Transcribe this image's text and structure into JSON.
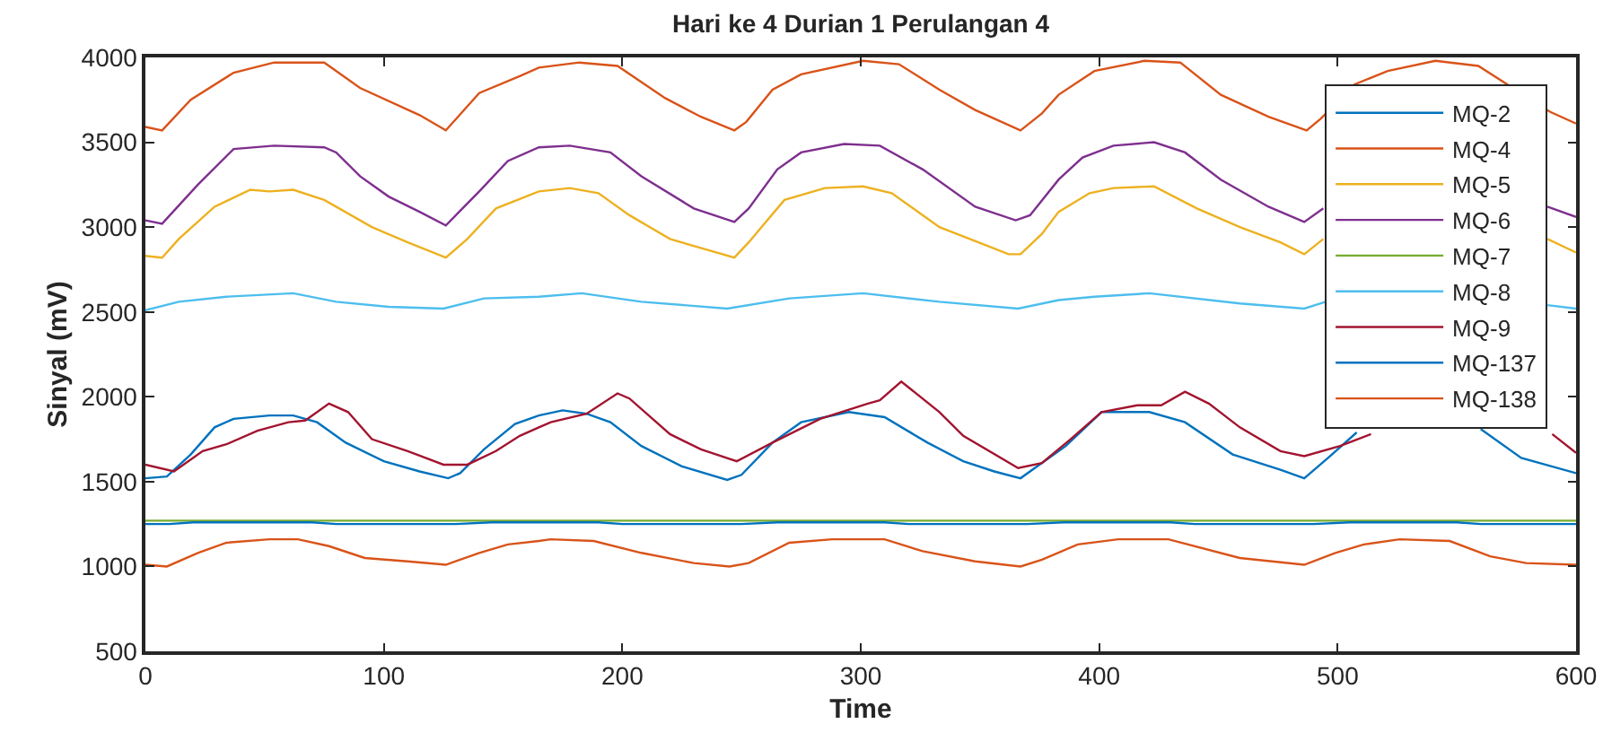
{
  "chart_data": {
    "type": "line",
    "title": "Hari ke 4 Durian 1 Perulangan 4",
    "xlabel": "Time",
    "ylabel": "Sinyal (mV)",
    "xlim": [
      0,
      600
    ],
    "ylim": [
      500,
      4000
    ],
    "xticks": [
      0,
      100,
      200,
      300,
      400,
      500,
      600
    ],
    "yticks": [
      500,
      1000,
      1500,
      2000,
      2500,
      3000,
      3500,
      4000
    ],
    "legend": "top right",
    "marker": "none",
    "line_style": "solid",
    "series": [
      {
        "name": "MQ-2",
        "color": "#0072bd",
        "x": [
          0,
          9,
          19,
          29,
          37,
          52,
          62,
          72,
          84,
          100,
          115,
          127,
          132,
          142,
          155,
          165,
          175,
          185,
          195,
          208,
          225,
          244,
          250,
          263,
          275,
          295,
          310,
          328,
          343,
          356,
          367,
          376,
          386,
          401,
          421,
          436,
          456,
          476,
          486,
          496,
          508,
          535,
          560,
          577,
          600
        ],
        "values": [
          1520,
          1530,
          1660,
          1820,
          1870,
          1890,
          1890,
          1850,
          1730,
          1620,
          1560,
          1520,
          1550,
          1690,
          1840,
          1890,
          1920,
          1900,
          1850,
          1710,
          1590,
          1510,
          1540,
          1730,
          1850,
          1910,
          1880,
          1730,
          1620,
          1560,
          1520,
          1610,
          1710,
          1910,
          1910,
          1850,
          1660,
          1570,
          1520,
          1640,
          1790,
          null,
          1810,
          1640,
          1550
        ]
      },
      {
        "name": "MQ-4",
        "color": "#d95319",
        "x": [
          0,
          7,
          19,
          37,
          54,
          75,
          90,
          115,
          126,
          140,
          157,
          165,
          182,
          198,
          218,
          233,
          247,
          252,
          263,
          275,
          301,
          316,
          333,
          348,
          367,
          376,
          383,
          398,
          419,
          434,
          451,
          471,
          487,
          493,
          507,
          521,
          541,
          559,
          589,
          600
        ],
        "values": [
          3590,
          3570,
          3750,
          3910,
          3970,
          3970,
          3820,
          3660,
          3570,
          3790,
          3890,
          3940,
          3970,
          3950,
          3760,
          3650,
          3570,
          3620,
          3810,
          3900,
          3980,
          3960,
          3810,
          3690,
          3570,
          3670,
          3780,
          3920,
          3980,
          3970,
          3780,
          3650,
          3570,
          3640,
          3840,
          3920,
          3980,
          3950,
          3680,
          3610
        ]
      },
      {
        "name": "MQ-5",
        "color": "#edb120",
        "x": [
          0,
          7,
          14,
          29,
          44,
          52,
          62,
          75,
          95,
          110,
          126,
          135,
          147,
          165,
          178,
          190,
          203,
          220,
          247,
          253,
          268,
          285,
          301,
          313,
          333,
          353,
          362,
          367,
          376,
          383,
          396,
          406,
          423,
          441,
          459,
          476,
          486,
          494,
          540,
          588,
          600
        ],
        "values": [
          2830,
          2820,
          2930,
          3120,
          3220,
          3210,
          3220,
          3160,
          3000,
          2910,
          2820,
          2930,
          3110,
          3210,
          3230,
          3200,
          3070,
          2930,
          2820,
          2910,
          3160,
          3230,
          3240,
          3200,
          3000,
          2890,
          2840,
          2840,
          2960,
          3090,
          3200,
          3230,
          3240,
          3110,
          3000,
          2910,
          2840,
          2930,
          null,
          2930,
          2850
        ]
      },
      {
        "name": "MQ-6",
        "color": "#7e2f8e",
        "x": [
          0,
          7,
          22,
          37,
          54,
          75,
          80,
          90,
          102,
          115,
          126,
          140,
          152,
          165,
          178,
          195,
          208,
          230,
          247,
          253,
          265,
          275,
          293,
          308,
          326,
          348,
          365,
          371,
          383,
          393,
          406,
          423,
          436,
          451,
          471,
          486,
          494,
          540,
          588,
          600
        ],
        "values": [
          3040,
          3020,
          3250,
          3460,
          3480,
          3470,
          3440,
          3300,
          3180,
          3090,
          3010,
          3210,
          3390,
          3470,
          3480,
          3440,
          3300,
          3110,
          3030,
          3110,
          3340,
          3440,
          3490,
          3480,
          3340,
          3120,
          3040,
          3070,
          3280,
          3410,
          3480,
          3500,
          3440,
          3280,
          3120,
          3030,
          3110,
          null,
          3120,
          3060
        ]
      },
      {
        "name": "MQ-7",
        "color": "#77ac30",
        "x": [
          0,
          100,
          200,
          300,
          400,
          500,
          600
        ],
        "values": [
          1270,
          1270,
          1270,
          1270,
          1270,
          1270,
          1270
        ]
      },
      {
        "name": "MQ-8",
        "color": "#4dbeee",
        "x": [
          0,
          14,
          34,
          62,
          80,
          102,
          125,
          142,
          165,
          183,
          208,
          244,
          270,
          301,
          333,
          366,
          383,
          398,
          421,
          459,
          486,
          495,
          540,
          588,
          600
        ],
        "values": [
          2510,
          2560,
          2590,
          2610,
          2560,
          2530,
          2520,
          2580,
          2590,
          2610,
          2560,
          2520,
          2580,
          2610,
          2560,
          2520,
          2570,
          2590,
          2610,
          2550,
          2520,
          2560,
          null,
          2540,
          2520
        ]
      },
      {
        "name": "MQ-9",
        "color": "#a2142f",
        "x": [
          0,
          12,
          24,
          34,
          47,
          60,
          67,
          77,
          85,
          95,
          110,
          125,
          135,
          147,
          157,
          165,
          170,
          185,
          198,
          203,
          220,
          233,
          248,
          263,
          283,
          303,
          308,
          317,
          333,
          343,
          366,
          376,
          388,
          401,
          416,
          426,
          436,
          446,
          459,
          476,
          486,
          501,
          514,
          545,
          590,
          600
        ],
        "values": [
          1600,
          1560,
          1680,
          1720,
          1800,
          1850,
          1860,
          1960,
          1910,
          1750,
          1680,
          1600,
          1600,
          1680,
          1770,
          1820,
          1850,
          1900,
          2020,
          1990,
          1780,
          1690,
          1620,
          1730,
          1870,
          1960,
          1980,
          2090,
          1910,
          1770,
          1580,
          1610,
          1750,
          1910,
          1950,
          1950,
          2030,
          1960,
          1820,
          1680,
          1650,
          1710,
          1780,
          null,
          1780,
          1670
        ]
      },
      {
        "name": "MQ-137",
        "color": "#0072bd",
        "x": [
          0,
          10,
          20,
          70,
          80,
          130,
          145,
          190,
          200,
          250,
          265,
          310,
          320,
          370,
          385,
          430,
          440,
          490,
          505,
          550,
          560,
          600
        ],
        "values": [
          1250,
          1250,
          1260,
          1260,
          1250,
          1250,
          1260,
          1260,
          1250,
          1250,
          1260,
          1260,
          1250,
          1250,
          1260,
          1260,
          1250,
          1250,
          1260,
          1260,
          1250,
          1250
        ]
      },
      {
        "name": "MQ-138",
        "color": "#d95319",
        "x": [
          0,
          9,
          22,
          34,
          52,
          64,
          77,
          92,
          110,
          126,
          140,
          152,
          165,
          170,
          188,
          208,
          230,
          245,
          253,
          270,
          288,
          310,
          326,
          348,
          367,
          376,
          391,
          408,
          429,
          459,
          486,
          499,
          511,
          526,
          547,
          564,
          579,
          600
        ],
        "values": [
          1010,
          1000,
          1080,
          1140,
          1160,
          1160,
          1120,
          1050,
          1030,
          1010,
          1080,
          1130,
          1150,
          1160,
          1150,
          1080,
          1020,
          1000,
          1020,
          1140,
          1160,
          1160,
          1090,
          1030,
          1000,
          1040,
          1130,
          1160,
          1160,
          1050,
          1010,
          1080,
          1130,
          1160,
          1150,
          1060,
          1020,
          1010
        ]
      }
    ]
  }
}
